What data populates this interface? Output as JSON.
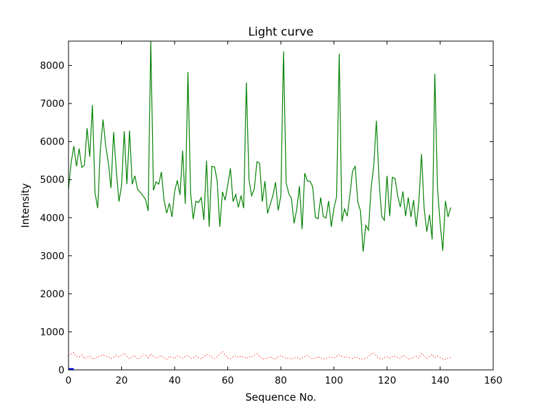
{
  "chart_data": {
    "type": "line",
    "title": "Light curve",
    "xlabel": "Sequence No.",
    "ylabel": "Intensity",
    "xlim": [
      0,
      160
    ],
    "ylim": [
      0,
      8640
    ],
    "xticks": [
      "0",
      "20",
      "40",
      "60",
      "80",
      "100",
      "120",
      "140",
      "160"
    ],
    "yticks": [
      "0",
      "1000",
      "2000",
      "3000",
      "4000",
      "5000",
      "6000",
      "7000",
      "8000"
    ],
    "grid": false,
    "series": [
      {
        "color": "#008000",
        "style": "solid",
        "x": [
          0,
          1,
          2,
          3,
          4,
          5,
          6,
          7,
          8,
          9,
          10,
          11,
          12,
          13,
          14,
          15,
          16,
          17,
          18,
          19,
          20,
          21,
          22,
          23,
          24,
          25,
          26,
          27,
          28,
          29,
          30,
          31,
          32,
          33,
          34,
          35,
          36,
          37,
          38,
          39,
          40,
          41,
          42,
          43,
          44,
          45,
          46,
          47,
          48,
          49,
          50,
          51,
          52,
          53,
          54,
          55,
          56,
          57,
          58,
          59,
          60,
          61,
          62,
          63,
          64,
          65,
          66,
          67,
          68,
          69,
          70,
          71,
          72,
          73,
          74,
          75,
          76,
          77,
          78,
          79,
          80,
          81,
          82,
          83,
          84,
          85,
          86,
          87,
          88,
          89,
          90,
          91,
          92,
          93,
          94,
          95,
          96,
          97,
          98,
          99,
          100,
          101,
          102,
          103,
          104,
          105,
          106,
          107,
          108,
          109,
          110,
          111,
          112,
          113,
          114,
          115,
          116,
          117,
          118,
          119,
          120,
          121,
          122,
          123,
          124,
          125,
          126,
          127,
          128,
          129,
          130,
          131,
          132,
          133,
          134,
          135,
          136,
          137,
          138,
          139,
          140,
          141,
          142,
          143,
          144
        ],
        "y": [
          4750,
          5450,
          5880,
          5350,
          5820,
          5320,
          5380,
          6350,
          5600,
          6960,
          4650,
          4250,
          5800,
          6580,
          5900,
          5450,
          4780,
          6250,
          5240,
          4420,
          4850,
          6270,
          4880,
          6290,
          4880,
          5100,
          4750,
          4670,
          4580,
          4480,
          4180,
          8640,
          4720,
          4940,
          4880,
          5200,
          4450,
          4120,
          4380,
          4020,
          4700,
          4980,
          4600,
          5760,
          4360,
          7830,
          4650,
          3960,
          4430,
          4400,
          4530,
          3940,
          5500,
          3760,
          5350,
          5330,
          4980,
          3760,
          4680,
          4460,
          4860,
          5300,
          4420,
          4610,
          4270,
          4580,
          4250,
          7550,
          5000,
          4580,
          4760,
          5470,
          5430,
          4420,
          4960,
          4110,
          4350,
          4580,
          4930,
          4190,
          4580,
          8370,
          4910,
          4630,
          4500,
          3850,
          4230,
          4830,
          3700,
          5170,
          4960,
          4960,
          4810,
          4010,
          3970,
          4530,
          4030,
          3990,
          4440,
          3760,
          4250,
          4550,
          8310,
          3900,
          4230,
          4040,
          4590,
          5220,
          5350,
          4410,
          4180,
          3110,
          3800,
          3670,
          4770,
          5370,
          6550,
          4970,
          4030,
          3930,
          5100,
          4040,
          5060,
          5030,
          4580,
          4280,
          4690,
          4040,
          4530,
          4020,
          4460,
          3760,
          4430,
          5670,
          4220,
          3630,
          4080,
          3430,
          7780,
          4800,
          3850,
          3130,
          4440,
          4020,
          4270
        ]
      },
      {
        "color": "#ff0000",
        "style": "dotted",
        "x": [
          0,
          1,
          2,
          3,
          4,
          5,
          6,
          7,
          8,
          9,
          10,
          11,
          12,
          13,
          14,
          15,
          16,
          17,
          18,
          19,
          20,
          21,
          22,
          23,
          24,
          25,
          26,
          27,
          28,
          29,
          30,
          31,
          32,
          33,
          34,
          35,
          36,
          37,
          38,
          39,
          40,
          41,
          42,
          43,
          44,
          45,
          46,
          47,
          48,
          49,
          50,
          51,
          52,
          53,
          54,
          55,
          56,
          57,
          58,
          59,
          60,
          61,
          62,
          63,
          64,
          65,
          66,
          67,
          68,
          69,
          70,
          71,
          72,
          73,
          74,
          75,
          76,
          77,
          78,
          79,
          80,
          81,
          82,
          83,
          84,
          85,
          86,
          87,
          88,
          89,
          90,
          91,
          92,
          93,
          94,
          95,
          96,
          97,
          98,
          99,
          100,
          101,
          102,
          103,
          104,
          105,
          106,
          107,
          108,
          109,
          110,
          111,
          112,
          113,
          114,
          115,
          116,
          117,
          118,
          119,
          120,
          121,
          122,
          123,
          124,
          125,
          126,
          127,
          128,
          129,
          130,
          131,
          132,
          133,
          134,
          135,
          136,
          137,
          138,
          139,
          140,
          141,
          142,
          143,
          144
        ],
        "y": [
          370,
          420,
          450,
          360,
          330,
          390,
          300,
          330,
          370,
          280,
          320,
          340,
          370,
          400,
          360,
          350,
          300,
          330,
          370,
          350,
          380,
          440,
          360,
          290,
          350,
          380,
          290,
          310,
          390,
          400,
          320,
          420,
          360,
          300,
          340,
          380,
          320,
          280,
          360,
          330,
          300,
          370,
          340,
          310,
          350,
          390,
          300,
          320,
          360,
          330,
          290,
          350,
          410,
          380,
          330,
          300,
          350,
          410,
          480,
          390,
          310,
          290,
          340,
          370,
          330,
          360,
          340,
          300,
          350,
          330,
          390,
          420,
          350,
          300,
          280,
          320,
          340,
          300,
          280,
          350,
          380,
          330,
          300,
          310,
          280,
          320,
          340,
          290,
          310,
          350,
          380,
          330,
          290,
          300,
          350,
          320,
          280,
          300,
          340,
          330,
          310,
          360,
          390,
          350,
          340,
          330,
          320,
          300,
          350,
          310,
          280,
          290,
          300,
          350,
          420,
          440,
          380,
          300,
          280,
          330,
          340,
          310,
          350,
          360,
          330,
          300,
          380,
          340,
          290,
          300,
          330,
          360,
          310,
          430,
          380,
          300,
          350,
          410,
          320,
          360,
          330,
          290,
          280,
          310,
          330
        ]
      },
      {
        "color": "#0000ff",
        "style": "solid",
        "x": [
          0,
          1,
          2
        ],
        "y": [
          15,
          20,
          15
        ]
      }
    ]
  }
}
